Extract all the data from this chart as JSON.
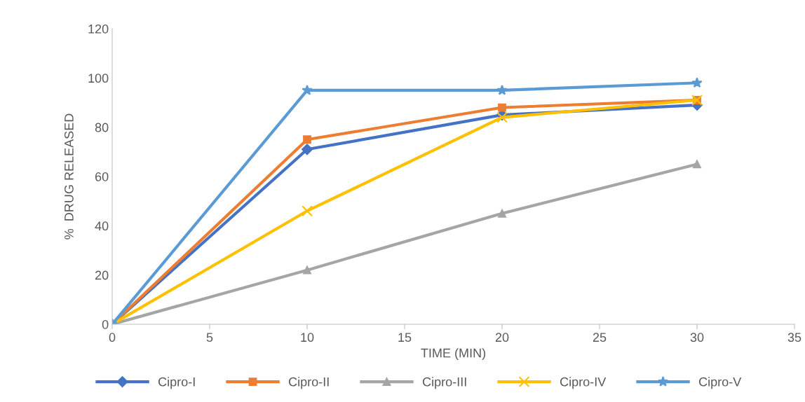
{
  "chart_data": {
    "type": "line",
    "xlabel": "TIME (MIN)",
    "ylabel": "%  DRUG RELEASED",
    "x": [
      0,
      10,
      20,
      30
    ],
    "series": [
      {
        "name": "Cipro-I",
        "color": "#4472c4",
        "marker": "diamond",
        "values": [
          0,
          71,
          85,
          89
        ]
      },
      {
        "name": "Cipro-II",
        "color": "#ed7d31",
        "marker": "square",
        "values": [
          0,
          75,
          88,
          91
        ]
      },
      {
        "name": "Cipro-III",
        "color": "#a5a5a5",
        "marker": "triangle",
        "values": [
          0,
          22,
          45,
          65
        ]
      },
      {
        "name": "Cipro-IV",
        "color": "#ffc000",
        "marker": "cross",
        "values": [
          0,
          46,
          84,
          91
        ]
      },
      {
        "name": "Cipro-V",
        "color": "#5b9bd5",
        "marker": "star",
        "values": [
          0,
          95,
          95,
          98
        ]
      }
    ],
    "xlim": [
      0,
      35
    ],
    "xticks": [
      0,
      5,
      10,
      15,
      20,
      25,
      30,
      35
    ],
    "ylim": [
      0,
      120
    ],
    "yticks": [
      0,
      20,
      40,
      60,
      80,
      100,
      120
    ],
    "grid": false,
    "legend": "bottom",
    "line_style": "solid"
  }
}
